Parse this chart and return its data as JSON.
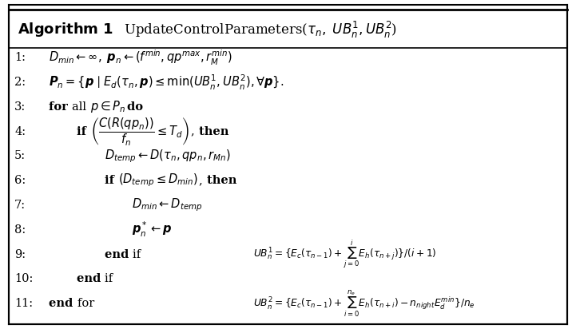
{
  "figsize": [
    7.21,
    4.12
  ],
  "dpi": 100,
  "bg_color": "#ffffff",
  "header_bg": "#ffffff",
  "border_color": "#000000",
  "lines": [
    {
      "num": "1:",
      "indent": 0,
      "text": "$D_{min} \\leftarrow \\infty,\\; \\boldsymbol{p}_n \\leftarrow (f^{min}, qp^{max}, r_M^{min})$"
    },
    {
      "num": "2:",
      "indent": 0,
      "text": "$\\boldsymbol{P}_n = \\{\\boldsymbol{p} \\mid E_d(\\tau_n, \\boldsymbol{p}) \\leq \\min(UB_n^1, UB_n^2), \\forall\\boldsymbol{p}\\}.$"
    },
    {
      "num": "3:",
      "indent": 0,
      "text": "for all $p \\in P_n$ do",
      "bold_words": [
        "for all",
        "do"
      ]
    },
    {
      "num": "4:",
      "indent": 1,
      "text": "if $\\left(\\dfrac{C(R(qp_n))}{f_n} \\leq T_d\\right)$, then",
      "bold_words": [
        "if",
        "then"
      ]
    },
    {
      "num": "5:",
      "indent": 2,
      "text": "$D_{temp} \\leftarrow D(\\tau_n, qp_n, r_{Mn})$"
    },
    {
      "num": "6:",
      "indent": 2,
      "text": "if $(D_{temp} \\leq D_{min})$, then",
      "bold_words": [
        "if",
        "then"
      ]
    },
    {
      "num": "7:",
      "indent": 3,
      "text": "$D_{min} \\leftarrow D_{temp}$"
    },
    {
      "num": "8:",
      "indent": 3,
      "text": "$\\boldsymbol{p}_n^* \\leftarrow \\boldsymbol{p}$"
    },
    {
      "num": "9:",
      "indent": 2,
      "text": "end if",
      "bold_words": [
        "end if"
      ]
    },
    {
      "num": "10:",
      "indent": 1,
      "text": "end if",
      "bold_words": [
        "end if"
      ]
    },
    {
      "num": "11:",
      "indent": 0,
      "text": "end for",
      "bold_words": [
        "end for"
      ]
    }
  ],
  "eq1_line": 8,
  "eq1_text": "$UB_n^1 = \\{E_c(\\tau_{n-1})+\\sum_{j=0}^{i} E_h(\\tau_{n+j})\\}/(i+1)$",
  "eq2_line": 10,
  "eq2_text": "$UB_n^2 = \\{E_c(\\tau_{n-1})+\\sum_{i=0}^{n_e} E_h(\\tau_{n+i})-n_{night}E_d^{min}\\}/n_e$"
}
